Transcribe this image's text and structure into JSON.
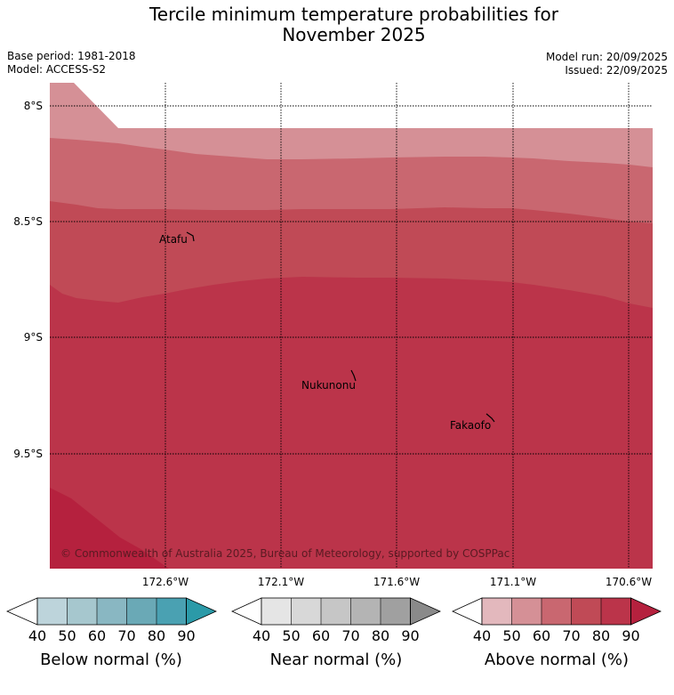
{
  "header": {
    "title_line1": "Tercile minimum temperature probabilities for",
    "title_line2": "November 2025",
    "base_period": "Base period: 1981-2018",
    "model": "Model: ACCESS-S2",
    "model_run": "Model run: 20/09/2025",
    "issued": "Issued: 22/09/2025"
  },
  "map": {
    "lat_labels": [
      "8°S",
      "8.5°S",
      "9°S",
      "9.5°S"
    ],
    "lon_labels": [
      "172.6°W",
      "172.1°W",
      "171.6°W",
      "171.1°W",
      "170.6°W"
    ],
    "places": [
      "Atafu",
      "Nukunonu",
      "Fakaofo"
    ],
    "copyright": "© Commonwealth of Australia 2025, Bureau of Meteorology, supported by COSPPac",
    "colors": {
      "band_50": "#d59096",
      "band_60": "#c96770",
      "band_70": "#c04a56",
      "band_80": "#bb344a",
      "band_90": "#b5213e"
    }
  },
  "legends": [
    {
      "title": "Below normal (%)",
      "ticks": [
        "40",
        "50",
        "60",
        "70",
        "80",
        "90"
      ],
      "colors": [
        "#bdd4db",
        "#a6c7ce",
        "#89b7c2",
        "#6aa9b6",
        "#4aa1b2",
        "#2b9aa8"
      ]
    },
    {
      "title": "Near normal (%)",
      "ticks": [
        "40",
        "50",
        "60",
        "70",
        "80",
        "90"
      ],
      "colors": [
        "#e5e5e5",
        "#d8d8d8",
        "#c6c6c6",
        "#b4b4b4",
        "#a0a0a0",
        "#8a8a8a"
      ]
    },
    {
      "title": "Above normal (%)",
      "ticks": [
        "40",
        "50",
        "60",
        "70",
        "80",
        "90"
      ],
      "colors": [
        "#e3b8bd",
        "#d59096",
        "#c96770",
        "#c04a56",
        "#bb344a",
        "#b5213e"
      ]
    }
  ]
}
